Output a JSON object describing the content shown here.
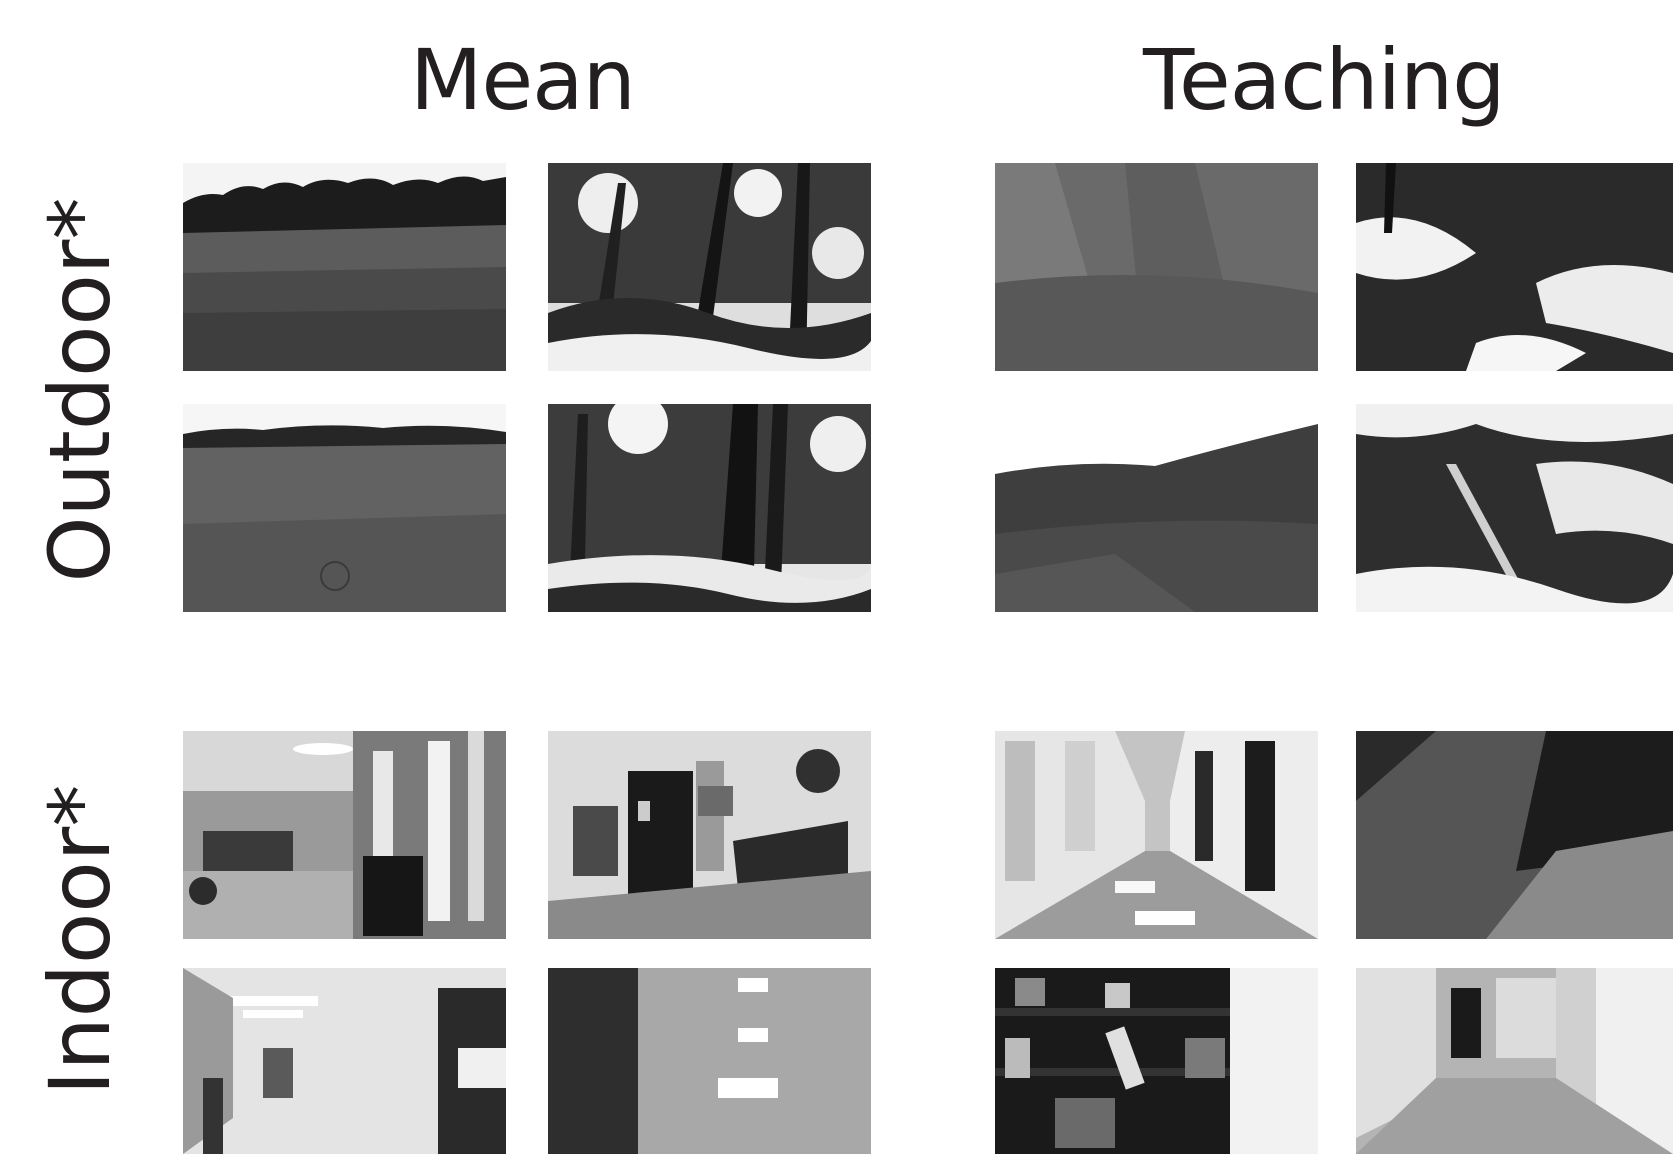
{
  "columns": {
    "mean": "Mean",
    "teaching": "Teaching"
  },
  "rows": {
    "outdoor": "Outdoor*",
    "indoor": "Indoor*"
  },
  "images": [
    {
      "scene": "field",
      "description_name": "mean-outdoor-field-1"
    },
    {
      "scene": "forest",
      "description_name": "mean-outdoor-forest-1"
    },
    {
      "scene": "grass",
      "description_name": "teaching-outdoor-grass-1"
    },
    {
      "scene": "forest",
      "description_name": "teaching-outdoor-forest-1"
    }
  ]
}
